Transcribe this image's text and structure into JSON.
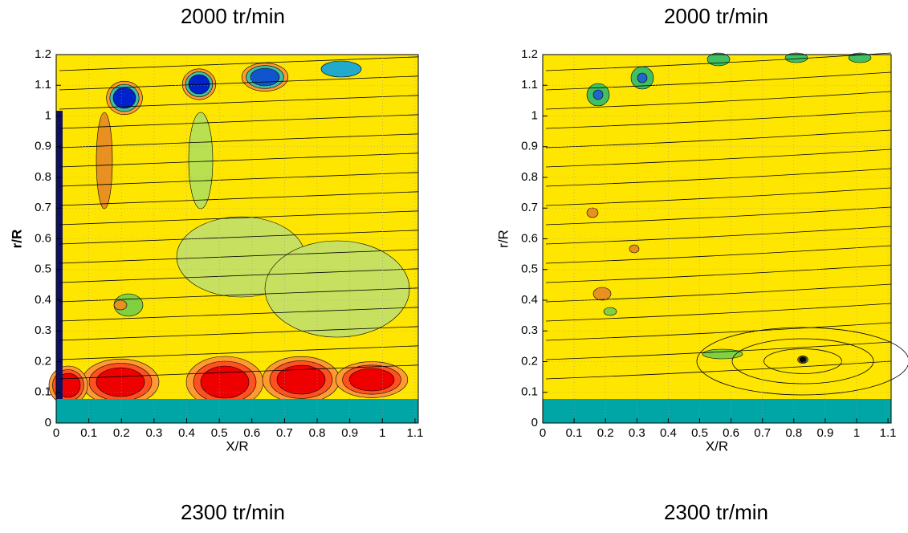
{
  "chart_data": [
    {
      "type": "contour",
      "title": "2000 tr/min",
      "caption": "2300 tr/min",
      "xlabel": "X/R",
      "ylabel": "r/R",
      "xlim": [
        0,
        1.11
      ],
      "ylim": [
        0,
        1.2
      ],
      "xticks": [
        0,
        0.1,
        0.2,
        0.3,
        0.4,
        0.5,
        0.6,
        0.7,
        0.8,
        0.9,
        1,
        1.1
      ],
      "yticks": [
        0,
        0.1,
        0.2,
        0.3,
        0.4,
        0.5,
        0.6,
        0.7,
        0.8,
        0.9,
        1,
        1.1,
        1.2
      ],
      "grid": true
    },
    {
      "type": "contour",
      "title": "2000 tr/min",
      "caption": "2300 tr/min",
      "xlabel": "X/R",
      "ylabel": "r/R",
      "xlim": [
        0,
        1.11
      ],
      "ylim": [
        0,
        1.2
      ],
      "xticks": [
        0,
        0.1,
        0.2,
        0.3,
        0.4,
        0.5,
        0.6,
        0.7,
        0.8,
        0.9,
        1,
        1.1
      ],
      "yticks": [
        0,
        0.1,
        0.2,
        0.3,
        0.4,
        0.5,
        0.6,
        0.7,
        0.8,
        0.9,
        1,
        1.1,
        1.2
      ],
      "grid": true
    }
  ]
}
